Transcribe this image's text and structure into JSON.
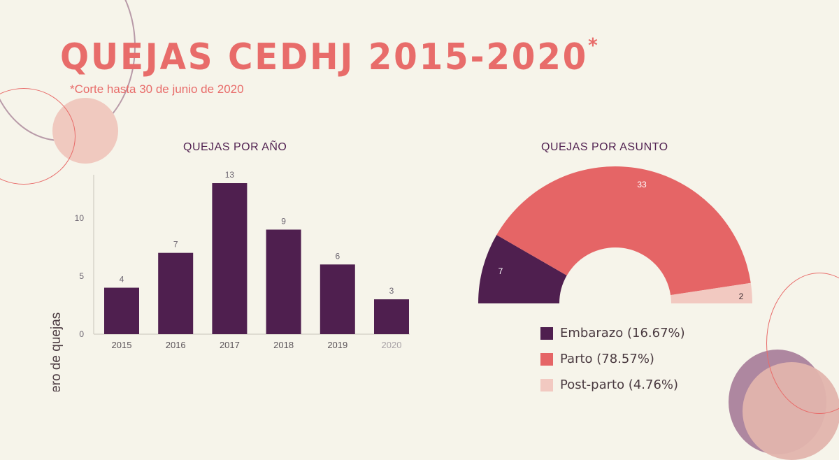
{
  "header": {
    "title": "QUEJAS CEDHJ 2015-2020",
    "title_mark": "*",
    "subtitle": "*Corte hasta 30 de junio de 2020"
  },
  "colors": {
    "background": "#f6f4ea",
    "accent": "#e86c6a",
    "purple": "#4f1f4f",
    "light_pink": "#f2c9c1"
  },
  "chart_data": [
    {
      "type": "bar",
      "title": "QUEJAS POR AÑO",
      "xlabel": "",
      "ylabel": "Número de quejas",
      "categories": [
        "2015",
        "2016",
        "2017",
        "2018",
        "2019",
        "2020"
      ],
      "values": [
        4,
        7,
        13,
        9,
        6,
        3
      ],
      "ylim": [
        0,
        14
      ],
      "yticks": [
        "0",
        "5",
        "10"
      ],
      "ytick_values": [
        0,
        5,
        10
      ],
      "data_labels": [
        "4",
        "7",
        "13",
        "9",
        "6",
        "3"
      ],
      "grid": false,
      "color": "#4f1f4f"
    },
    {
      "type": "pie",
      "subtype": "semi-donut",
      "title": "QUEJAS POR ASUNTO",
      "categories": [
        "Embarazo",
        "Parto",
        "Post-parto"
      ],
      "values": [
        7,
        33,
        2
      ],
      "data_labels": [
        "7",
        "33",
        "2"
      ],
      "percentages": [
        "16.67%",
        "78.57%",
        "4.76%"
      ],
      "legend_labels": [
        "Embarazo (16.67%)",
        "Parto (78.57%)",
        "Post-parto (4.76%)"
      ],
      "legend_position": "bottom",
      "colors": [
        "#4f1f4f",
        "#e56566",
        "#f2c9c1"
      ]
    }
  ]
}
